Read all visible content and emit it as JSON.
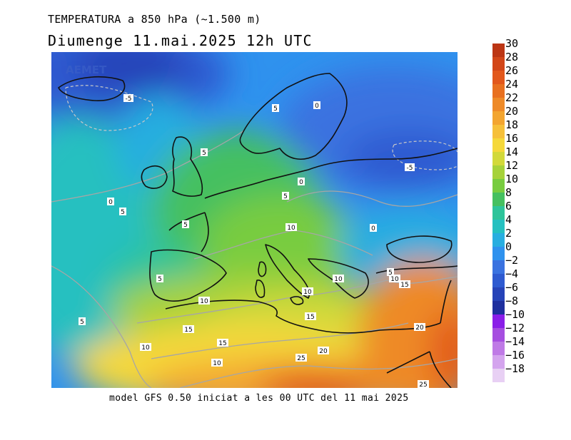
{
  "header": {
    "title": "TEMPERATURA a 850 hPa (~1.500 m)",
    "subtitle": "Diumenge  11.mai.2025 12h UTC"
  },
  "footer": {
    "text": "model GFS 0.50 iniciat a les 00 UTC del 11 mai 2025"
  },
  "legend": {
    "colors": [
      "#e8d0f4",
      "#d4a4ee",
      "#bf7ae6",
      "#a64ee0",
      "#8a1ee8",
      "#1e2f9e",
      "#2643b8",
      "#2e5ad0",
      "#3a72e0",
      "#2f92ee",
      "#28aee0",
      "#25c0c0",
      "#2ec49a",
      "#45c060",
      "#78cc40",
      "#a6d23a",
      "#d2d93a",
      "#f5d83a",
      "#f6c03a",
      "#f3a530",
      "#ee8a28",
      "#e87020",
      "#e2581c",
      "#d24618",
      "#bc3614"
    ],
    "labels": [
      "-18",
      "-16",
      "-14",
      "-12",
      "-10",
      "-8",
      "-6",
      "-4",
      "-2",
      "0",
      "2",
      "4",
      "6",
      "8",
      "10",
      "12",
      "14",
      "16",
      "18",
      "20",
      "22",
      "24",
      "26",
      "28",
      "30"
    ]
  },
  "map": {
    "watermark": "AEMET",
    "contour_labels": [
      "-5",
      "5",
      "0",
      "5",
      "-5",
      "5",
      "0",
      "5",
      "0",
      "5",
      "10",
      "5",
      "0",
      "10",
      "5",
      "10",
      "15",
      "5",
      "10",
      "10",
      "15",
      "15",
      "20",
      "10",
      "15",
      "20",
      "25",
      "25"
    ]
  }
}
